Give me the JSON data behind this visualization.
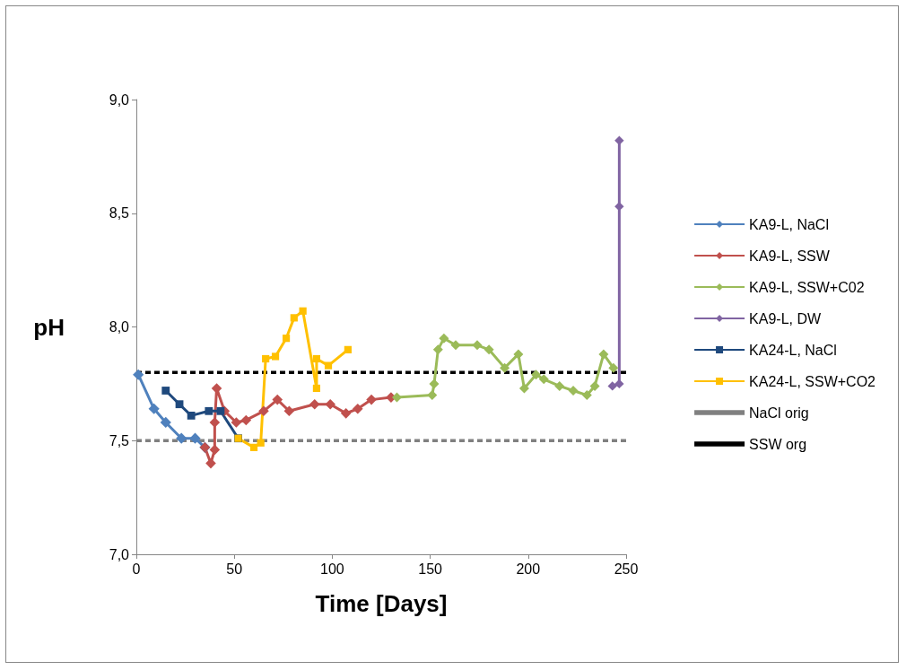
{
  "chart_data": {
    "type": "line",
    "xlabel": "Time [Days]",
    "ylabel": "pH",
    "xlim": [
      0,
      250
    ],
    "xticks": [
      0,
      50,
      100,
      150,
      200,
      250
    ],
    "ylim": [
      7,
      9
    ],
    "yticks": [
      {
        "value": 7,
        "label": "7,0"
      },
      {
        "value": 7.5,
        "label": "7,5"
      },
      {
        "value": 8,
        "label": "8,0"
      },
      {
        "value": 8.5,
        "label": "8,5"
      },
      {
        "value": 9,
        "label": "9,0"
      }
    ],
    "grid": false,
    "legend": "right",
    "line_style": "solid",
    "series": [
      {
        "name": "KA9-L, NaCl",
        "color": "#4f81bd",
        "marker": "diamond",
        "x": [
          1,
          9,
          15,
          23,
          30,
          35
        ],
        "values": [
          7.79,
          7.64,
          7.58,
          7.51,
          7.51,
          7.47
        ]
      },
      {
        "name": "KA9-L, SSW",
        "color": "#c0504d",
        "marker": "diamond",
        "x": [
          35,
          38,
          40,
          40,
          41,
          45,
          51,
          56,
          65,
          72,
          78,
          91,
          99,
          107,
          113,
          120,
          130
        ],
        "values": [
          7.47,
          7.4,
          7.46,
          7.58,
          7.73,
          7.63,
          7.58,
          7.59,
          7.63,
          7.68,
          7.63,
          7.66,
          7.66,
          7.62,
          7.64,
          7.68,
          7.69
        ]
      },
      {
        "name": "KA9-L, SSW+C02",
        "color": "#9bbb59",
        "marker": "diamond",
        "x": [
          133,
          151,
          152,
          154,
          157,
          163,
          174,
          180,
          188,
          195,
          198,
          204,
          208,
          216,
          223,
          230,
          234,
          238.5,
          243.5
        ],
        "values": [
          7.69,
          7.7,
          7.75,
          7.9,
          7.95,
          7.92,
          7.92,
          7.9,
          7.82,
          7.88,
          7.73,
          7.79,
          7.77,
          7.74,
          7.72,
          7.7,
          7.74,
          7.88,
          7.82
        ]
      },
      {
        "name": "KA9-L, DW",
        "color": "#8064a2",
        "marker": "diamond",
        "x": [
          243,
          246.5,
          246.5,
          246.5
        ],
        "values": [
          7.74,
          7.75,
          8.53,
          8.82
        ]
      },
      {
        "name": "KA24-L, NaCl",
        "color": "#1f497d",
        "marker": "square",
        "x": [
          15,
          22,
          28,
          37,
          43,
          52
        ],
        "values": [
          7.72,
          7.66,
          7.61,
          7.63,
          7.63,
          7.51
        ]
      },
      {
        "name": "KA24-L, SSW+CO2",
        "color": "#ffc000",
        "marker": "square",
        "x": [
          52,
          60,
          63.5,
          66,
          71,
          76.5,
          80.5,
          85,
          92,
          92,
          98,
          108
        ],
        "values": [
          7.51,
          7.47,
          7.49,
          7.86,
          7.87,
          7.95,
          8.04,
          8.07,
          7.73,
          7.86,
          7.83,
          7.9
        ]
      },
      {
        "name": "NaCl orig",
        "color": "#808080",
        "marker": "none",
        "line_style": "dashed",
        "x": [
          0,
          250
        ],
        "values": [
          7.5,
          7.5
        ]
      },
      {
        "name": "SSW org",
        "color": "#000000",
        "marker": "none",
        "line_style": "dashed",
        "x": [
          0,
          250
        ],
        "values": [
          7.8,
          7.8
        ]
      }
    ]
  }
}
